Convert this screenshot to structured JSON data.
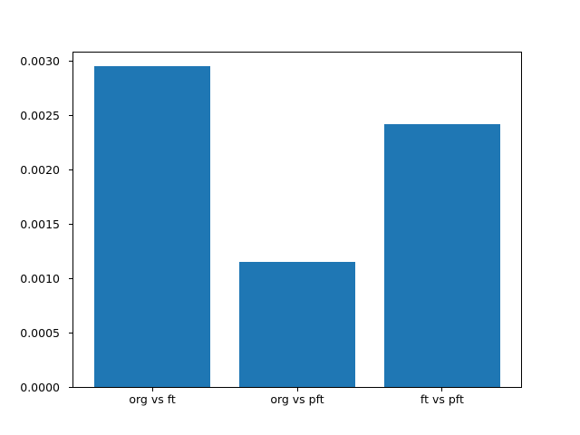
{
  "chart_data": {
    "type": "bar",
    "title": "",
    "xlabel": "",
    "ylabel": "",
    "categories": [
      "org vs ft",
      "org vs pft",
      "ft vs pft"
    ],
    "values": [
      0.00295,
      0.00115,
      0.00242
    ],
    "ytick_labels": [
      "0.0000",
      "0.0005",
      "0.0010",
      "0.0015",
      "0.0020",
      "0.0025",
      "0.0030"
    ],
    "ytick_values": [
      0.0,
      0.0005,
      0.001,
      0.0015,
      0.002,
      0.0025,
      0.003
    ],
    "ylim": [
      0,
      0.003077
    ],
    "xlim": [
      -0.545,
      2.545
    ],
    "bar_width": 0.8,
    "bar_color": "#1f77b4",
    "grid": false,
    "legend_position": "none",
    "background_color": "#ffffff",
    "spine_color": "#000000"
  }
}
